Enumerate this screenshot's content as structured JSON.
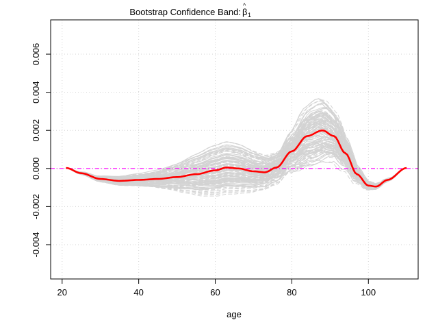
{
  "chart_data": {
    "type": "line",
    "title": "Bootstrap Confidence Band: ",
    "title_symbol": "β",
    "title_hat": "^",
    "title_subscript": "1",
    "xlabel": "age",
    "ylabel": "",
    "xlim": [
      17,
      113
    ],
    "ylim": [
      -0.0058,
      0.0078
    ],
    "xticks": [
      20,
      40,
      60,
      80,
      100
    ],
    "xtick_labels": [
      "20",
      "40",
      "60",
      "80",
      "100"
    ],
    "yticks": [
      -0.004,
      -0.002,
      0.0,
      0.002,
      0.004,
      0.006
    ],
    "ytick_labels": [
      "-0.004",
      "-0.002",
      "0.000",
      "0.002",
      "0.004",
      "0.006"
    ],
    "grid": true,
    "reference_line": {
      "y": 0.0,
      "color": "#ff00ff",
      "style": "dashdot"
    },
    "colors": {
      "estimate": "#ff0000",
      "bootstrap": "#d3d3d3",
      "grid": "#d3d3d3",
      "reference": "#ff00ff"
    },
    "bootstrap_count": 120,
    "series": [
      {
        "role": "estimate",
        "color": "#ff0000",
        "x": [
          21,
          25,
          30,
          35,
          40,
          45,
          50,
          55,
          60,
          63,
          66,
          70,
          73,
          76,
          80,
          84,
          88,
          91,
          94,
          97,
          100,
          102,
          105,
          110
        ],
        "y": [
          3e-05,
          -0.00025,
          -0.00055,
          -0.00065,
          -0.0006,
          -0.00055,
          -0.00045,
          -0.0003,
          -0.0001,
          5e-05,
          0.0,
          -0.00015,
          -0.0002,
          5e-05,
          0.0009,
          0.0017,
          0.002,
          0.0017,
          0.0008,
          -0.0003,
          -0.0009,
          -0.00095,
          -0.0006,
          3e-05
        ]
      }
    ]
  }
}
